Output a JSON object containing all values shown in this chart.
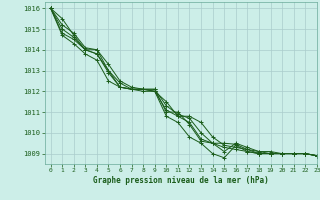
{
  "title": "Graphe pression niveau de la mer (hPa)",
  "bg_color": "#cceee8",
  "grid_color": "#aacccc",
  "line_color": "#1a5c1a",
  "spine_color": "#6aaa99",
  "xlim": [
    -0.5,
    23
  ],
  "ylim": [
    1008.5,
    1016.3
  ],
  "yticks": [
    1009,
    1010,
    1011,
    1012,
    1013,
    1014,
    1015,
    1016
  ],
  "xticks": [
    0,
    1,
    2,
    3,
    4,
    5,
    6,
    7,
    8,
    9,
    10,
    11,
    12,
    13,
    14,
    15,
    16,
    17,
    18,
    19,
    20,
    21,
    22,
    23
  ],
  "series": [
    [
      1016.0,
      1015.5,
      1014.7,
      1014.0,
      1013.8,
      1013.0,
      1012.2,
      1012.1,
      1012.0,
      1012.0,
      1011.5,
      1010.8,
      1010.8,
      1010.5,
      1009.8,
      1009.4,
      1009.3,
      1009.2,
      1009.1,
      1009.1,
      1009.0,
      1009.0,
      1009.0,
      1008.9
    ],
    [
      1016.0,
      1015.2,
      1014.8,
      1014.1,
      1014.0,
      1013.3,
      1012.5,
      1012.2,
      1012.1,
      1012.1,
      1011.3,
      1010.9,
      1010.7,
      1010.0,
      1009.5,
      1009.3,
      1009.2,
      1009.1,
      1009.0,
      1009.0,
      1009.0,
      1009.0,
      1009.0,
      1008.9
    ],
    [
      1016.0,
      1015.0,
      1014.6,
      1014.0,
      1013.8,
      1012.9,
      1012.2,
      1012.1,
      1012.1,
      1012.0,
      1011.1,
      1010.8,
      1010.5,
      1009.7,
      1009.5,
      1009.5,
      1009.45,
      1009.2,
      1009.0,
      1009.0,
      1009.0,
      1009.0,
      1009.0,
      1008.9
    ],
    [
      1016.0,
      1014.7,
      1014.3,
      1013.8,
      1013.5,
      1012.5,
      1012.2,
      1012.1,
      1012.1,
      1012.1,
      1011.0,
      1011.0,
      1010.4,
      1009.6,
      1009.5,
      1009.1,
      1009.5,
      1009.3,
      1009.1,
      1009.0,
      1009.0,
      1009.0,
      1009.0,
      1008.9
    ],
    [
      1016.0,
      1014.8,
      1014.5,
      1014.0,
      1014.0,
      1013.0,
      1012.4,
      1012.1,
      1012.1,
      1012.0,
      1010.8,
      1010.5,
      1009.8,
      1009.5,
      1009.0,
      1008.8,
      1009.4,
      1009.1,
      1009.0,
      1009.0,
      1009.0,
      1009.0,
      1009.0,
      1008.9
    ]
  ]
}
